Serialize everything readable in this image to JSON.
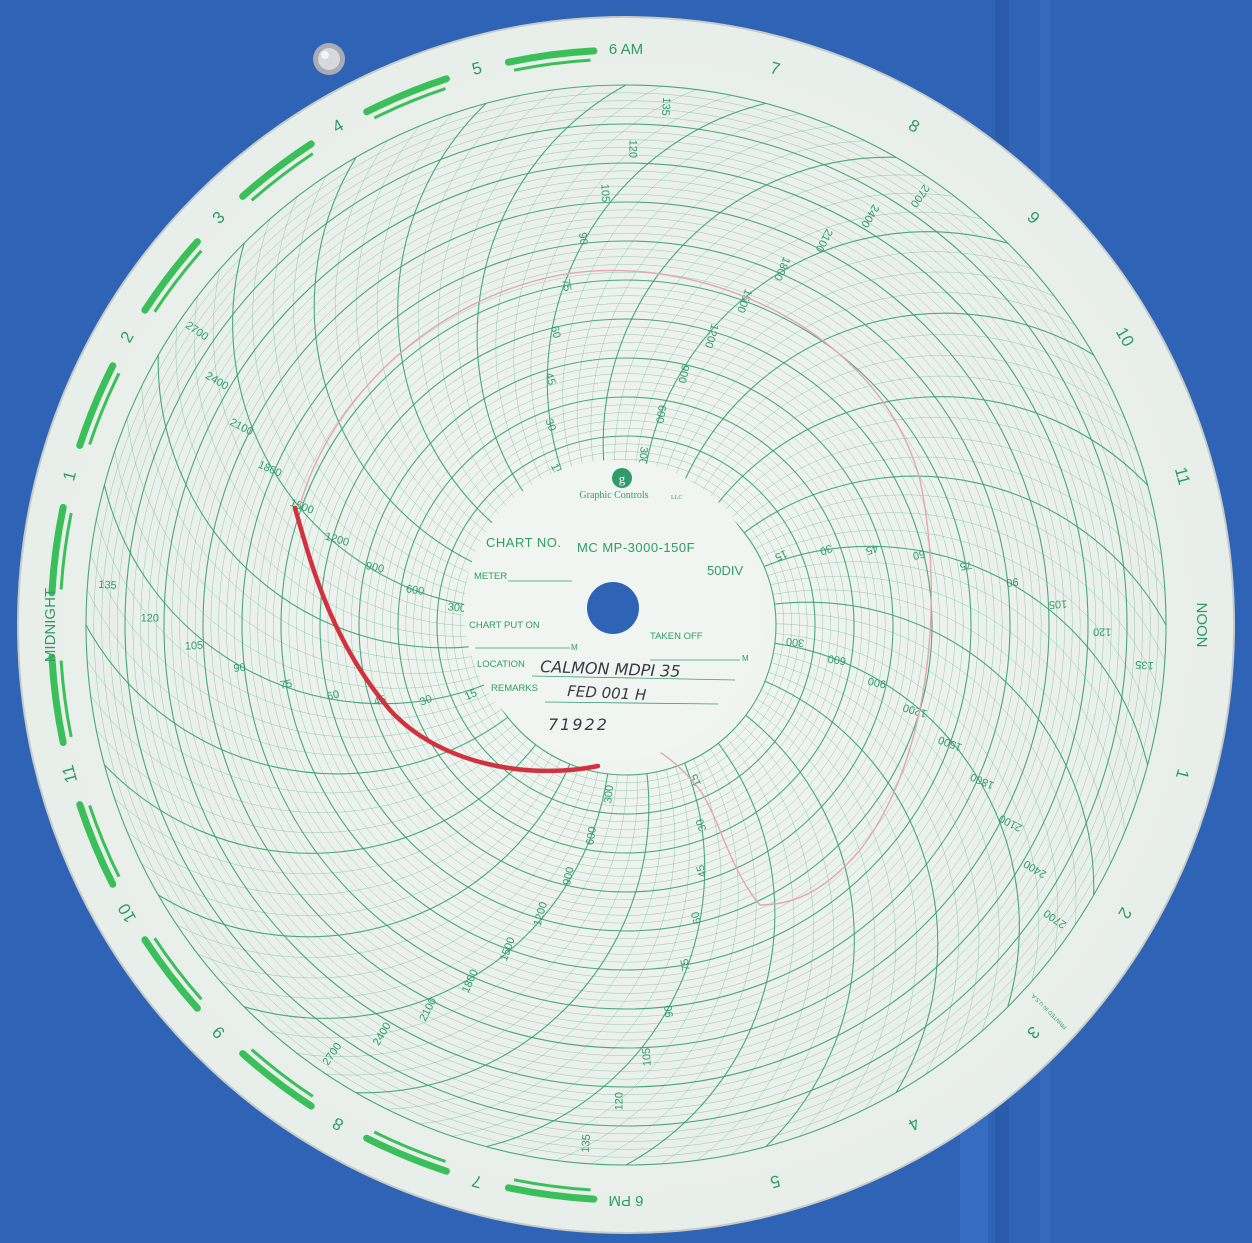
{
  "colors": {
    "background": "#2f63b6",
    "paper": "#eef3ef",
    "grid": "#3a9e72",
    "hour_band": "#3bbf5a",
    "trace_red": "#d0333f",
    "trace_pink": "#e2a6b4"
  },
  "brand": {
    "name": "Graphic Controls",
    "suffix": "LLC",
    "logo_letter": "g"
  },
  "chart": {
    "chart_no_label": "CHART NO.",
    "chart_no_value": "MC MP-3000-150F",
    "divisions": "50DIV",
    "meter_label": "METER",
    "chart_put_on_label": "CHART PUT ON",
    "taken_off_label": "TAKEN OFF",
    "m_suffix": "M",
    "location_label": "LOCATION",
    "location_value": "CALMON MDPI 35",
    "remarks_label": "REMARKS",
    "remarks_value": "FED 001 H",
    "date_value": "71922",
    "printed": "PRINTED IN U.S.A."
  },
  "hour_labels": [
    "6 AM",
    "7",
    "8",
    "9",
    "10",
    "11",
    "NOON",
    "1",
    "2",
    "3",
    "4",
    "5",
    "6 PM",
    "7",
    "8",
    "9",
    "10",
    "11",
    "MIDNIGHT",
    "1",
    "2",
    "3",
    "4",
    "5"
  ],
  "scale_outer": [
    "300",
    "600",
    "900",
    "1200",
    "1500",
    "1800",
    "2100",
    "2400",
    "2700"
  ],
  "scale_inner": [
    "15",
    "30",
    "45",
    "60",
    "75",
    "90",
    "105",
    "120",
    "135"
  ]
}
